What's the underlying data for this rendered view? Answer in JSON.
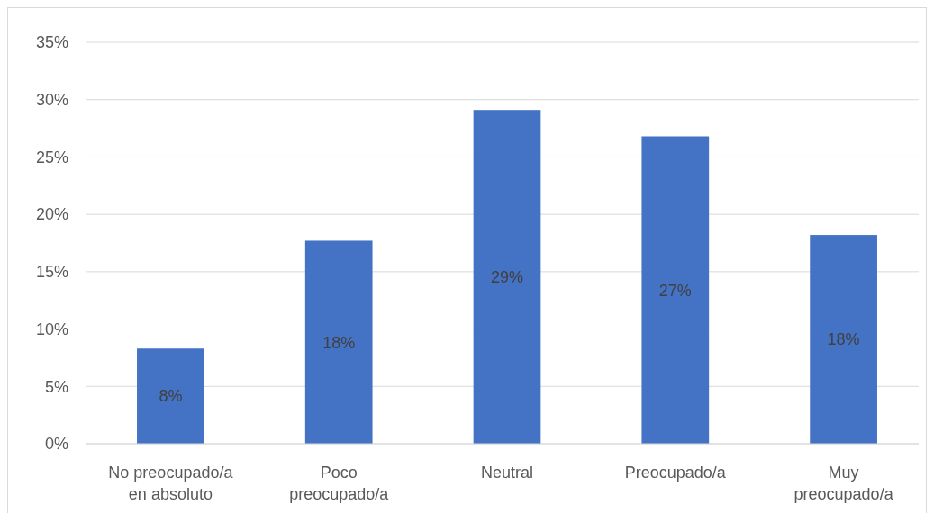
{
  "chart_data": {
    "type": "bar",
    "categories": [
      "No preocupado/a en absoluto",
      "Poco preocupado/a",
      "Neutral",
      "Preocupado/a",
      "Muy preocupado/a"
    ],
    "values": [
      8.3,
      17.7,
      29.1,
      26.8,
      18.2
    ],
    "value_labels": [
      "8%",
      "18%",
      "29%",
      "27%",
      "18%"
    ],
    "color": "#4472c4",
    "ylim": [
      0,
      35
    ],
    "yticks": [
      {
        "value": 0,
        "label": "0%"
      },
      {
        "value": 5,
        "label": "5%"
      },
      {
        "value": 10,
        "label": "10%"
      },
      {
        "value": 15,
        "label": "15%"
      },
      {
        "value": 20,
        "label": "20%"
      },
      {
        "value": 25,
        "label": "25%"
      },
      {
        "value": 30,
        "label": "30%"
      },
      {
        "value": 35,
        "label": "35%"
      }
    ],
    "grid": "y"
  }
}
